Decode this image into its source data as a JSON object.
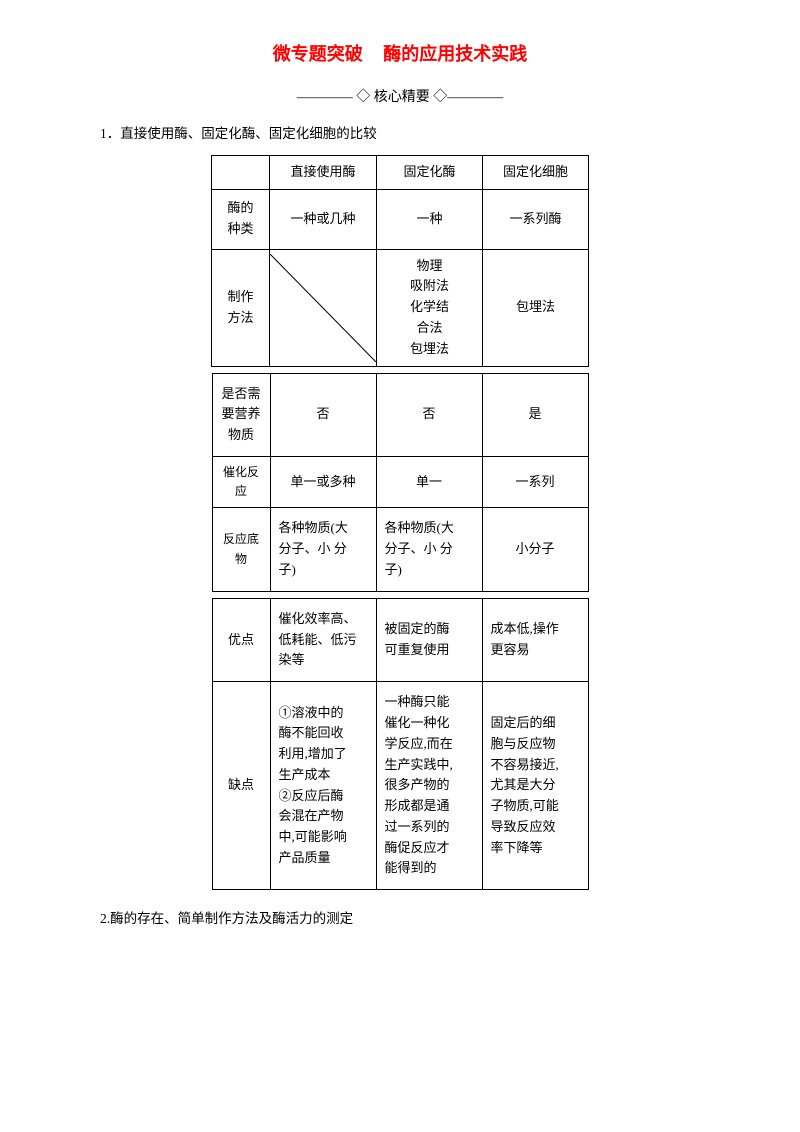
{
  "title": {
    "part1": "微专题突破",
    "part2": "酶的应用技术实践"
  },
  "subtitle": "———— ◇ 核心精要 ◇————",
  "section1_heading": "1．直接使用酶、固定化酶、固定化细胞的比较",
  "section2_heading": "2.酶的存在、简单制作方法及酶活力的测定",
  "top_header": {
    "c1": "",
    "c2": "直接使用酶",
    "c3": "固定化酶",
    "c4": "固定化细胞"
  },
  "row_types": {
    "label": "酶的\n种类",
    "c2": "一种或几种",
    "c3": "一种",
    "c4": "一系列酶"
  },
  "row_method": {
    "label": "制作\n方法",
    "c3": "物理\n吸附法\n化学结\n合法\n包埋法",
    "c4": "包埋法"
  },
  "row_nutrient": {
    "label": "是否需\n要营养\n物质",
    "c2": "否",
    "c3": "否",
    "c4": "是"
  },
  "row_catalysis": {
    "label": "催化反应",
    "c2": "单一或多种",
    "c3": "单一",
    "c4": "一系列"
  },
  "row_substrate": {
    "label": "反应底物",
    "c2": "各种物质(大\n分子、小 分\n子)",
    "c3": "各种物质(大\n分子、小 分\n子)",
    "c4": "小分子"
  },
  "row_pros": {
    "label": "优点",
    "c2": "催化效率高、\n低耗能、低污\n染等",
    "c3": "被固定的酶\n可重复使用",
    "c4": "成本低,操作\n更容易"
  },
  "row_cons": {
    "label": "缺点",
    "c2": "①溶液中的\n酶不能回收\n利用,增加了\n生产成本\n②反应后酶\n会混在产物\n中,可能影响\n产品质量",
    "c3": "一种酶只能\n催化一种化\n学反应,而在\n生产实践中,\n很多产物的\n形成都是通\n过一系列的\n酶促反应才\n能得到的",
    "c4": "固定后的细\n胞与反应物\n不容易接近,\n尤其是大分\n子物质,可能\n导致反应效\n率下降等"
  }
}
